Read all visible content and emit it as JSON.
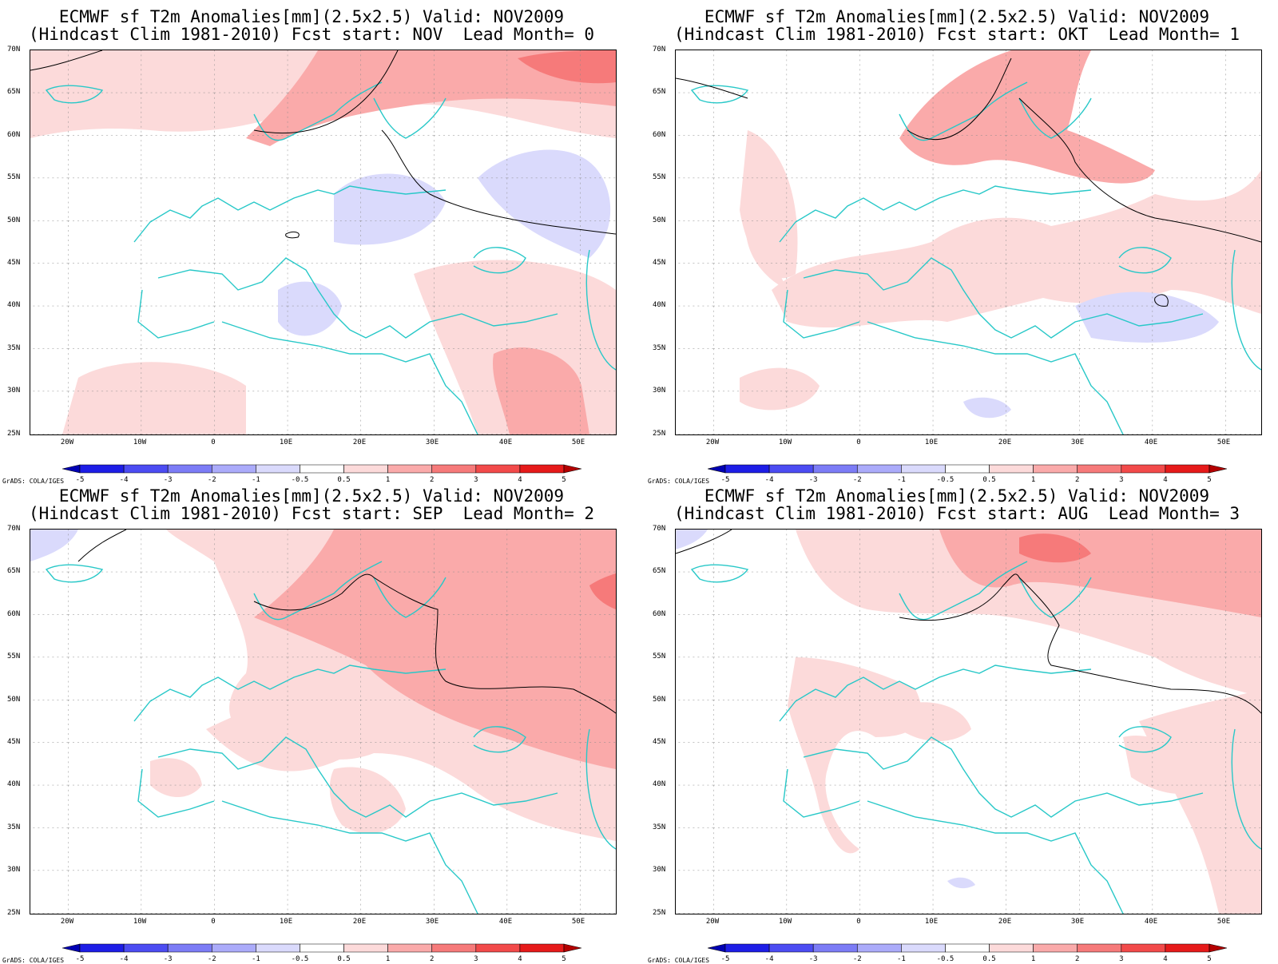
{
  "common": {
    "y_labels": [
      "70N",
      "65N",
      "60N",
      "55N",
      "50N",
      "45N",
      "40N",
      "35N",
      "30N",
      "25N"
    ],
    "x_labels": [
      "20W",
      "10W",
      "0",
      "10E",
      "20E",
      "30E",
      "40E",
      "50E"
    ],
    "colorbar": {
      "labels": [
        "-5",
        "-4",
        "-3",
        "-2",
        "-1",
        "-0.5",
        "0.5",
        "1",
        "2",
        "3",
        "4",
        "5"
      ],
      "colors": [
        "#0000b4",
        "#1d1de6",
        "#4c4cf2",
        "#7c7cf6",
        "#ababfa",
        "#dadafc",
        "#ffffff",
        "#fcdada",
        "#faaaaa",
        "#f67a7a",
        "#f24a4a",
        "#e61a1a",
        "#b40000"
      ]
    },
    "credit": "GrADS: COLA/IGES",
    "coast_color": "#28c8c8"
  },
  "panels": [
    {
      "title_line1": "ECMWF sf T2m Anomalies[mm](2.5x2.5) Valid: NOV2009",
      "title_line2": "(Hindcast Clim 1981-2010) Fcst start: NOV  Lead Month= 0"
    },
    {
      "title_line1": "ECMWF sf T2m Anomalies[mm](2.5x2.5) Valid: NOV2009",
      "title_line2": "(Hindcast Clim 1981-2010) Fcst start: OKT  Lead Month= 1"
    },
    {
      "title_line1": "ECMWF sf T2m Anomalies[mm](2.5x2.5) Valid: NOV2009",
      "title_line2": "(Hindcast Clim 1981-2010) Fcst start: SEP  Lead Month= 2"
    },
    {
      "title_line1": "ECMWF sf T2m Anomalies[mm](2.5x2.5) Valid: NOV2009",
      "title_line2": "(Hindcast Clim 1981-2010) Fcst start: AUG  Lead Month= 3"
    }
  ]
}
